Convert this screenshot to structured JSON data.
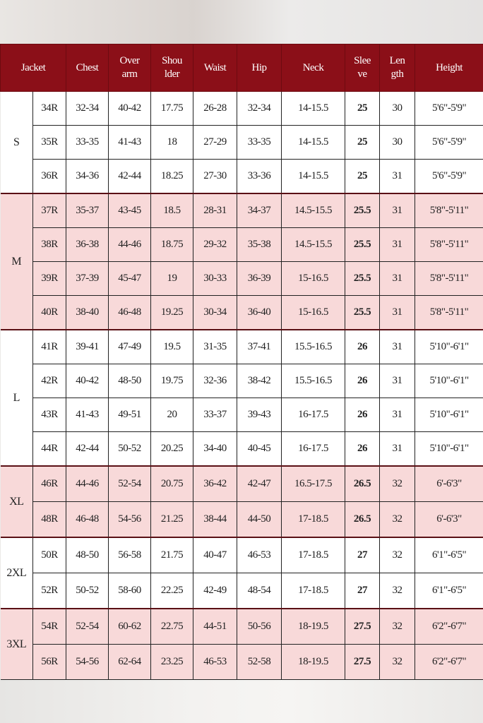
{
  "headers": [
    {
      "label": "Jacket"
    },
    {
      "label": "Chest"
    },
    {
      "line1": "Over",
      "line2": "arm"
    },
    {
      "line1": "Shou",
      "line2": "lder"
    },
    {
      "label": "Waist"
    },
    {
      "label": "Hip"
    },
    {
      "label": "Neck"
    },
    {
      "line1": "Slee",
      "line2": "ve"
    },
    {
      "line1": "Len",
      "line2": "gth"
    },
    {
      "label": "Height"
    }
  ],
  "colors": {
    "header": "#8b0f18",
    "pink_row": "#f8d9d9",
    "white_row": "#ffffff"
  },
  "groups": [
    {
      "size": "S",
      "shade": "white",
      "rows": [
        [
          "34R",
          "32-34",
          "40-42",
          "17.75",
          "26-28",
          "32-34",
          "14-15.5",
          "25",
          "30",
          "5'6\"-5'9\""
        ],
        [
          "35R",
          "33-35",
          "41-43",
          "18",
          "27-29",
          "33-35",
          "14-15.5",
          "25",
          "30",
          "5'6\"-5'9\""
        ],
        [
          "36R",
          "34-36",
          "42-44",
          "18.25",
          "27-30",
          "33-36",
          "14-15.5",
          "25",
          "31",
          "5'6\"-5'9\""
        ]
      ]
    },
    {
      "size": "M",
      "shade": "pink",
      "rows": [
        [
          "37R",
          "35-37",
          "43-45",
          "18.5",
          "28-31",
          "34-37",
          "14.5-15.5",
          "25.5",
          "31",
          "5'8\"-5'11\""
        ],
        [
          "38R",
          "36-38",
          "44-46",
          "18.75",
          "29-32",
          "35-38",
          "14.5-15.5",
          "25.5",
          "31",
          "5'8\"-5'11\""
        ],
        [
          "39R",
          "37-39",
          "45-47",
          "19",
          "30-33",
          "36-39",
          "15-16.5",
          "25.5",
          "31",
          "5'8\"-5'11\""
        ],
        [
          "40R",
          "38-40",
          "46-48",
          "19.25",
          "30-34",
          "36-40",
          "15-16.5",
          "25.5",
          "31",
          "5'8\"-5'11\""
        ]
      ]
    },
    {
      "size": "L",
      "shade": "white",
      "rows": [
        [
          "41R",
          "39-41",
          "47-49",
          "19.5",
          "31-35",
          "37-41",
          "15.5-16.5",
          "26",
          "31",
          "5'10\"-6'1\""
        ],
        [
          "42R",
          "40-42",
          "48-50",
          "19.75",
          "32-36",
          "38-42",
          "15.5-16.5",
          "26",
          "31",
          "5'10\"-6'1\""
        ],
        [
          "43R",
          "41-43",
          "49-51",
          "20",
          "33-37",
          "39-43",
          "16-17.5",
          "26",
          "31",
          "5'10\"-6'1\""
        ],
        [
          "44R",
          "42-44",
          "50-52",
          "20.25",
          "34-40",
          "40-45",
          "16-17.5",
          "26",
          "31",
          "5'10\"-6'1\""
        ]
      ]
    },
    {
      "size": "XL",
      "shade": "pink",
      "rows": [
        [
          "46R",
          "44-46",
          "52-54",
          "20.75",
          "36-42",
          "42-47",
          "16.5-17.5",
          "26.5",
          "32",
          "6'-6'3\""
        ],
        [
          "48R",
          "46-48",
          "54-56",
          "21.25",
          "38-44",
          "44-50",
          "17-18.5",
          "26.5",
          "32",
          "6'-6'3\""
        ]
      ]
    },
    {
      "size": "2XL",
      "shade": "white",
      "rows": [
        [
          "50R",
          "48-50",
          "56-58",
          "21.75",
          "40-47",
          "46-53",
          "17-18.5",
          "27",
          "32",
          "6'1\"-6'5\""
        ],
        [
          "52R",
          "50-52",
          "58-60",
          "22.25",
          "42-49",
          "48-54",
          "17-18.5",
          "27",
          "32",
          "6'1\"-6'5\""
        ]
      ]
    },
    {
      "size": "3XL",
      "shade": "pink",
      "rows": [
        [
          "54R",
          "52-54",
          "60-62",
          "22.75",
          "44-51",
          "50-56",
          "18-19.5",
          "27.5",
          "32",
          "6'2\"-6'7\""
        ],
        [
          "56R",
          "54-56",
          "62-64",
          "23.25",
          "46-53",
          "52-58",
          "18-19.5",
          "27.5",
          "32",
          "6'2\"-6'7\""
        ]
      ]
    }
  ]
}
